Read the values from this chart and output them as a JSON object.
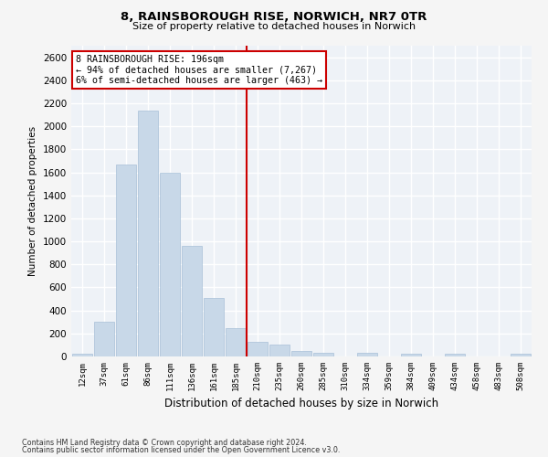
{
  "title_line1": "8, RAINSBOROUGH RISE, NORWICH, NR7 0TR",
  "title_line2": "Size of property relative to detached houses in Norwich",
  "xlabel": "Distribution of detached houses by size in Norwich",
  "ylabel": "Number of detached properties",
  "bar_color": "#c8d8e8",
  "bar_edge_color": "#a8c0d8",
  "vline_color": "#cc0000",
  "vline_x": 7.5,
  "annotation_line1": "8 RAINSBOROUGH RISE: 196sqm",
  "annotation_line2": "← 94% of detached houses are smaller (7,267)",
  "annotation_line3": "6% of semi-detached houses are larger (463) →",
  "annotation_box_color": "#ffffff",
  "annotation_box_edge": "#cc0000",
  "categories": [
    "12sqm",
    "37sqm",
    "61sqm",
    "86sqm",
    "111sqm",
    "136sqm",
    "161sqm",
    "185sqm",
    "210sqm",
    "235sqm",
    "260sqm",
    "285sqm",
    "310sqm",
    "334sqm",
    "359sqm",
    "384sqm",
    "409sqm",
    "434sqm",
    "458sqm",
    "483sqm",
    "508sqm"
  ],
  "values": [
    25,
    300,
    1670,
    2140,
    1595,
    960,
    505,
    248,
    125,
    100,
    48,
    32,
    0,
    30,
    0,
    25,
    0,
    25,
    0,
    0,
    25
  ],
  "ylim": [
    0,
    2700
  ],
  "yticks": [
    0,
    200,
    400,
    600,
    800,
    1000,
    1200,
    1400,
    1600,
    1800,
    2000,
    2200,
    2400,
    2600
  ],
  "background_color": "#eef2f7",
  "grid_color": "#ffffff",
  "fig_bg": "#f5f5f5",
  "footer_line1": "Contains HM Land Registry data © Crown copyright and database right 2024.",
  "footer_line2": "Contains public sector information licensed under the Open Government Licence v3.0."
}
